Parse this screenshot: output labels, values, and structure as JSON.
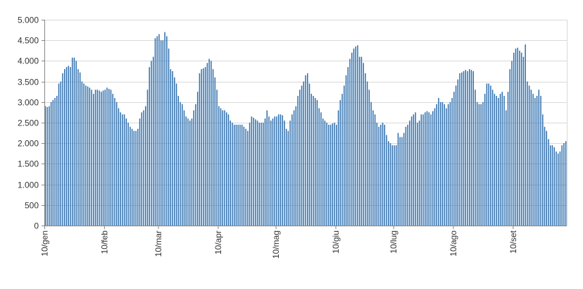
{
  "chart_data": {
    "type": "bar",
    "title": "",
    "xlabel": "",
    "ylabel": "",
    "ylim": [
      0,
      5000
    ],
    "yticks": [
      0,
      500,
      1000,
      1500,
      2000,
      2500,
      3000,
      3500,
      4000,
      4500,
      5000
    ],
    "ytick_labels": [
      "0",
      "500",
      "1.000",
      "1.500",
      "2.000",
      "2.500",
      "3.000",
      "3.500",
      "4.000",
      "4.500",
      "5.000"
    ],
    "xtick_labels": [
      "10/gen",
      "10/feb",
      "10/mar",
      "10/apr",
      "10/mag",
      "10/giu",
      "10/lug",
      "10/ago",
      "10/set"
    ],
    "xtick_day_index": [
      0,
      31,
      59,
      90,
      120,
      151,
      181,
      212,
      243
    ],
    "grid": true,
    "legend": "none",
    "bar_color": "#2e6fae",
    "values": [
      2900,
      2880,
      2900,
      3000,
      3050,
      3100,
      3150,
      3450,
      3500,
      3700,
      3800,
      3850,
      3880,
      3850,
      4080,
      4080,
      4000,
      3800,
      3720,
      3500,
      3450,
      3400,
      3380,
      3350,
      3300,
      3200,
      3300,
      3300,
      3280,
      3250,
      3280,
      3300,
      3350,
      3320,
      3300,
      3200,
      3100,
      3000,
      2850,
      2750,
      2700,
      2700,
      2600,
      2500,
      2400,
      2350,
      2300,
      2300,
      2350,
      2600,
      2750,
      2800,
      2900,
      3300,
      3850,
      4000,
      4100,
      4550,
      4600,
      4650,
      4500,
      4500,
      4700,
      4600,
      4300,
      3800,
      3750,
      3600,
      3450,
      3150,
      3000,
      2950,
      2800,
      2650,
      2600,
      2550,
      2600,
      2800,
      2950,
      3250,
      3700,
      3800,
      3820,
      3850,
      3950,
      4050,
      4000,
      3800,
      3600,
      3300,
      2900,
      2850,
      2800,
      2800,
      2750,
      2700,
      2550,
      2500,
      2450,
      2450,
      2450,
      2450,
      2450,
      2400,
      2350,
      2300,
      2500,
      2650,
      2620,
      2580,
      2550,
      2500,
      2500,
      2500,
      2600,
      2800,
      2650,
      2550,
      2600,
      2650,
      2650,
      2700,
      2700,
      2680,
      2550,
      2350,
      2300,
      2550,
      2700,
      2800,
      2900,
      3150,
      3300,
      3400,
      3500,
      3650,
      3700,
      3450,
      3200,
      3150,
      3100,
      3050,
      2850,
      2750,
      2600,
      2550,
      2500,
      2450,
      2450,
      2480,
      2500,
      2450,
      2800,
      3050,
      3200,
      3400,
      3650,
      3850,
      4050,
      4200,
      4300,
      4350,
      4380,
      4100,
      4100,
      3950,
      3700,
      3500,
      3300,
      3000,
      2800,
      2700,
      2500,
      2400,
      2450,
      2500,
      2450,
      2200,
      2050,
      2000,
      1950,
      1950,
      1950,
      2250,
      2150,
      2150,
      2250,
      2400,
      2450,
      2550,
      2650,
      2700,
      2750,
      2500,
      2550,
      2700,
      2700,
      2750,
      2780,
      2750,
      2700,
      2780,
      2850,
      2950,
      3100,
      3000,
      3000,
      2950,
      2850,
      2950,
      3000,
      3100,
      3250,
      3400,
      3550,
      3700,
      3720,
      3750,
      3780,
      3750,
      3800,
      3780,
      3750,
      3300,
      3000,
      2950,
      2950,
      3000,
      3200,
      3450,
      3450,
      3400,
      3300,
      3200,
      3150,
      3100,
      3200,
      3250,
      3150,
      2800,
      3250,
      3800,
      4000,
      4200,
      4300,
      4320,
      4250,
      4200,
      4100,
      4400,
      3500,
      3400,
      3300,
      3200,
      3100,
      3150,
      3300,
      3150,
      2700,
      2400,
      2300,
      2100,
      1950,
      1950,
      1900,
      1800,
      1750,
      1800,
      1950,
      2000,
      2050
    ]
  }
}
